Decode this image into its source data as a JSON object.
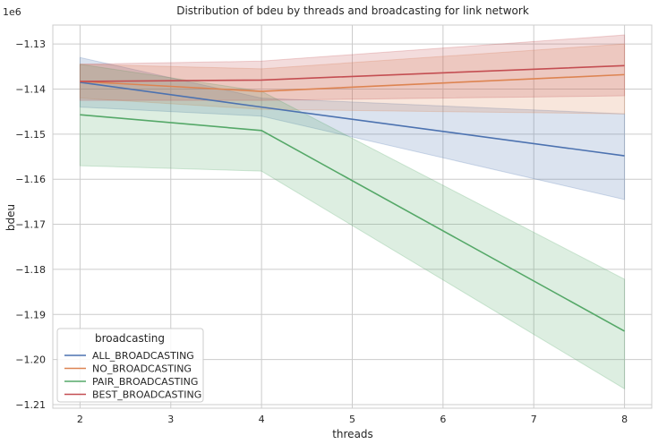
{
  "chart_data": {
    "type": "line",
    "title": "Distribution of bdeu by threads and broadcasting for link network",
    "xlabel": "threads",
    "ylabel": "bdeu",
    "y_offset_label": "1e6",
    "xlim": [
      1.7,
      8.3
    ],
    "ylim": [
      -1.2108,
      -1.1258
    ],
    "xticks": [
      2,
      3,
      4,
      5,
      6,
      7,
      8
    ],
    "xtick_labels": [
      "2",
      "3",
      "4",
      "5",
      "6",
      "7",
      "8"
    ],
    "yticks": [
      -1.21,
      -1.2,
      -1.19,
      -1.18,
      -1.17,
      -1.16,
      -1.15,
      -1.14,
      -1.13
    ],
    "ytick_labels": [
      "−1.21",
      "−1.20",
      "−1.19",
      "−1.18",
      "−1.17",
      "−1.16",
      "−1.15",
      "−1.14",
      "−1.13"
    ],
    "grid": true,
    "legend": {
      "title": "broadcasting",
      "placement": "lower-left"
    },
    "x": [
      2,
      4,
      8
    ],
    "series": [
      {
        "name": "ALL_BROADCASTING",
        "color": "#4c72b0",
        "values": [
          -1.1385,
          -1.144,
          -1.1548
        ],
        "lower": [
          -1.144,
          -1.146,
          -1.1645
        ],
        "upper": [
          -1.133,
          -1.142,
          -1.1455
        ]
      },
      {
        "name": "NO_BROADCASTING",
        "color": "#dd8452",
        "values": [
          -1.1383,
          -1.1405,
          -1.1368
        ],
        "lower": [
          -1.142,
          -1.1445,
          -1.1455
        ],
        "upper": [
          -1.1345,
          -1.1355,
          -1.13
        ]
      },
      {
        "name": "PAIR_BROADCASTING",
        "color": "#55a868",
        "values": [
          -1.1457,
          -1.1492,
          -1.1937
        ],
        "lower": [
          -1.157,
          -1.1582,
          -1.2065
        ],
        "upper": [
          -1.1345,
          -1.1405,
          -1.1822
        ]
      },
      {
        "name": "BEST_BROADCASTING",
        "color": "#c44e52",
        "values": [
          -1.1383,
          -1.138,
          -1.1348
        ],
        "lower": [
          -1.1425,
          -1.1425,
          -1.1415
        ],
        "upper": [
          -1.1345,
          -1.1338,
          -1.128
        ]
      }
    ]
  }
}
